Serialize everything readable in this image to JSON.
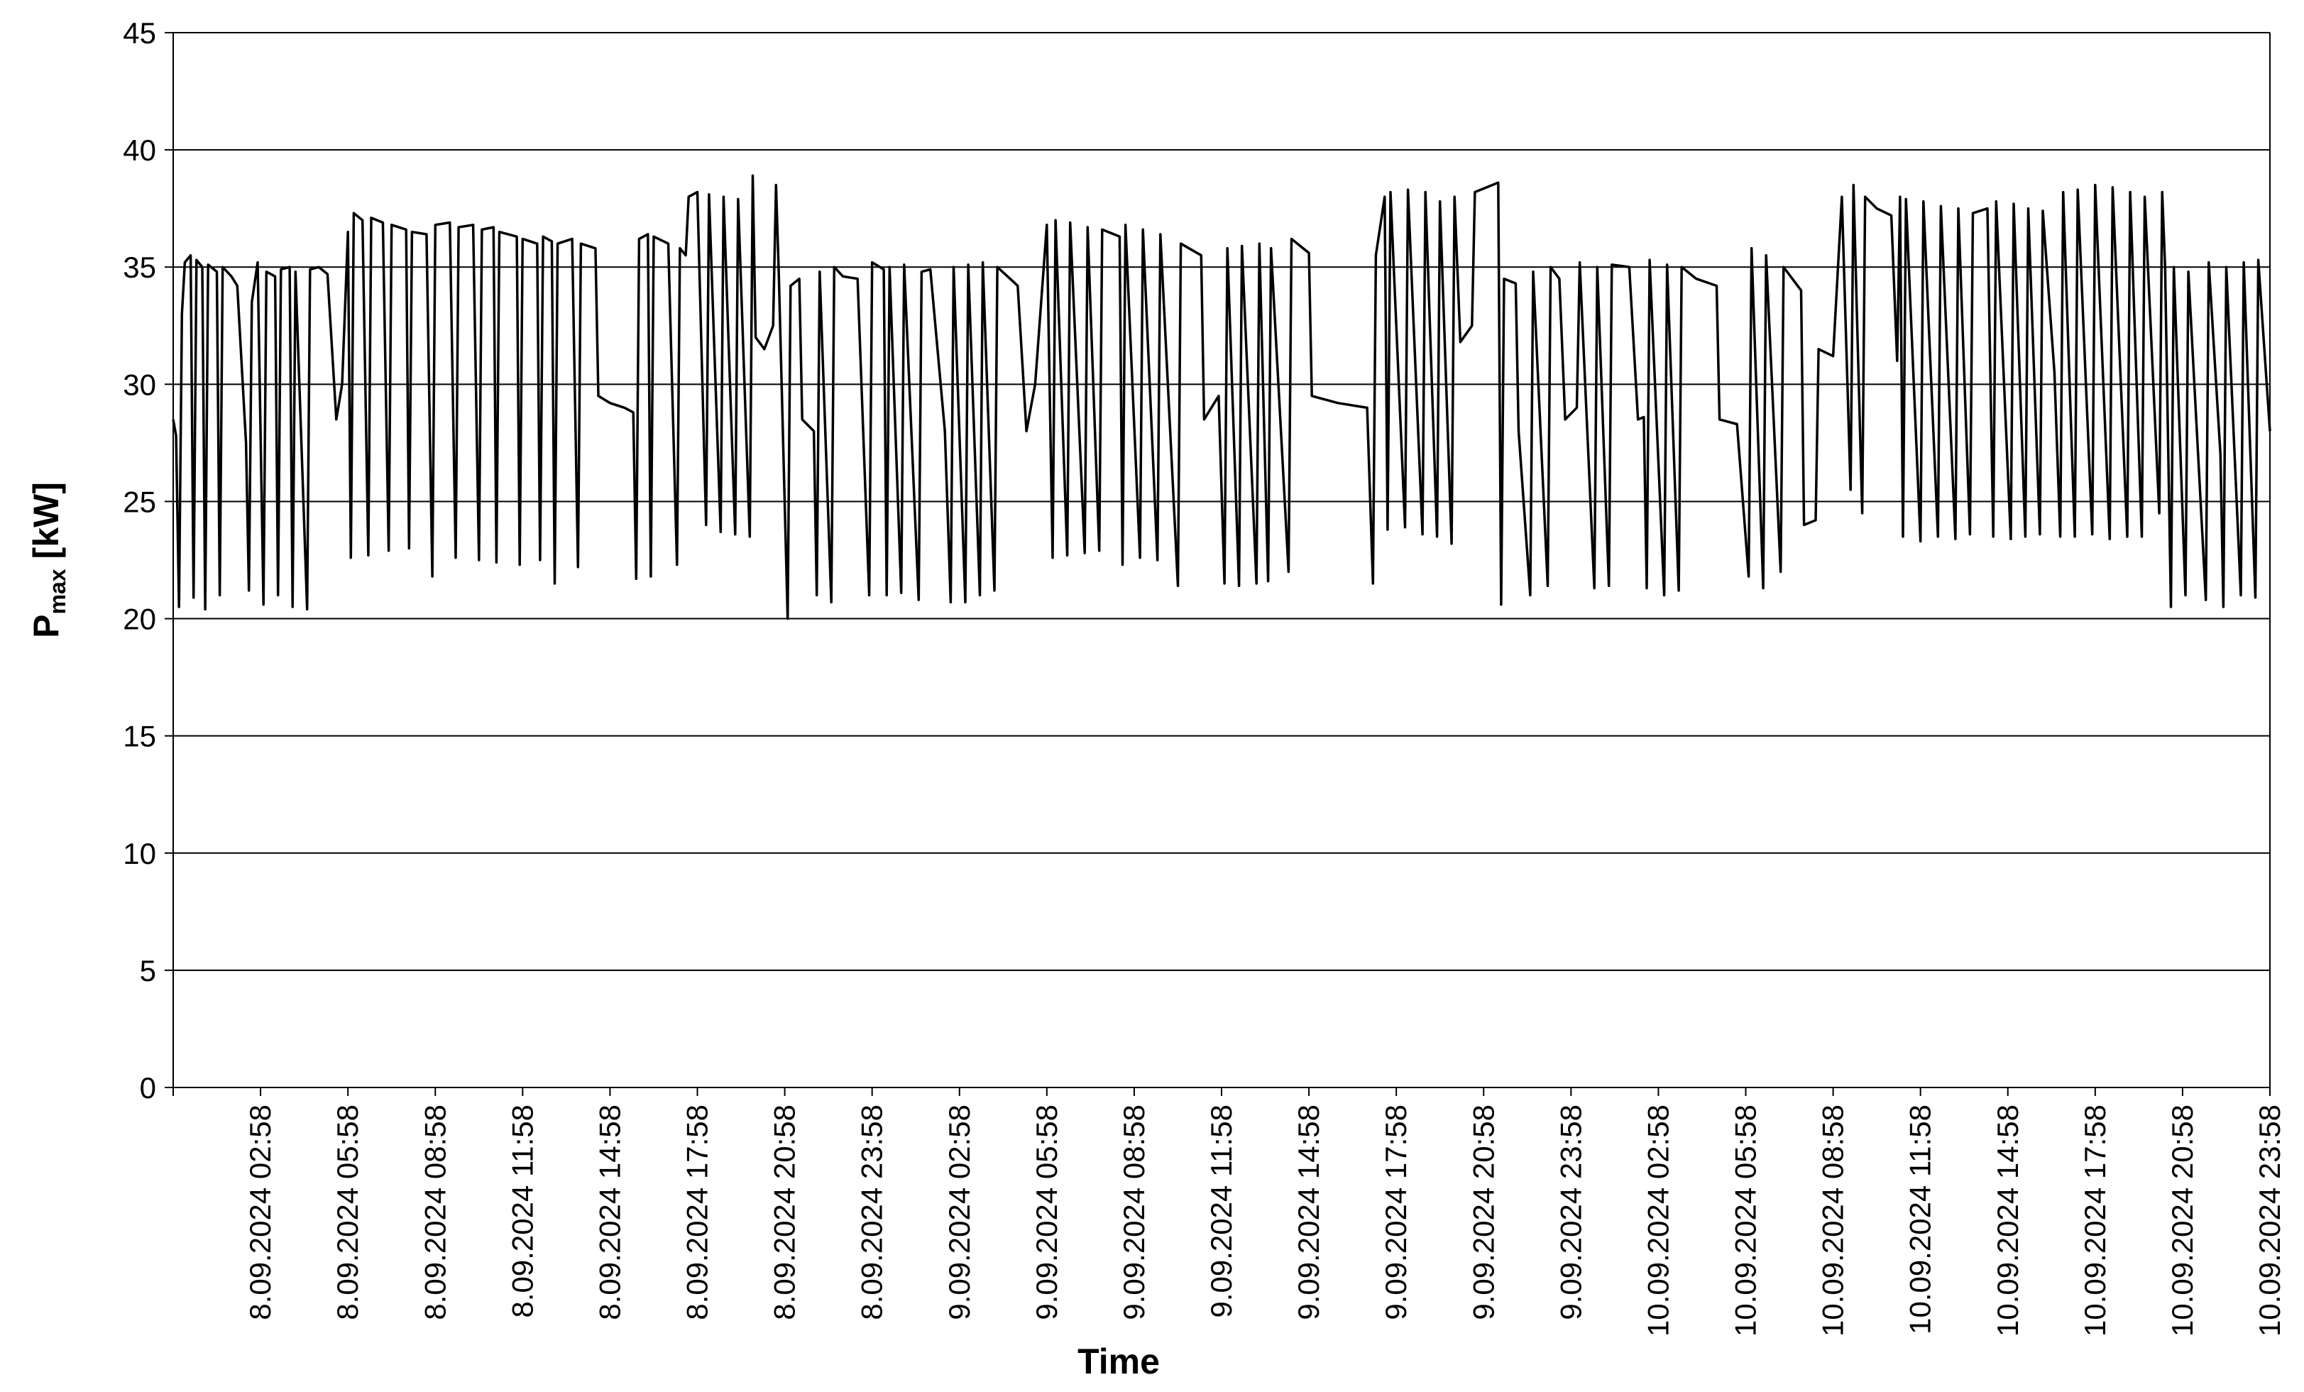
{
  "chart_data": {
    "type": "line",
    "x_label": "Time",
    "y_label": {
      "main": "P",
      "sub": "max",
      "unit": "[kW]"
    },
    "color": "#000000",
    "grid": true,
    "xlim": [
      0,
      72
    ],
    "ylim": [
      0,
      45
    ],
    "yticks": [
      0,
      5,
      10,
      15,
      20,
      25,
      30,
      35,
      40,
      45
    ],
    "xticks": [
      {
        "value": 3,
        "label": "8.09.2024 02:58"
      },
      {
        "value": 6,
        "label": "8.09.2024 05:58"
      },
      {
        "value": 9,
        "label": "8.09.2024 08:58"
      },
      {
        "value": 12,
        "label": "8.09.2024 11:58"
      },
      {
        "value": 15,
        "label": "8.09.2024 14:58"
      },
      {
        "value": 18,
        "label": "8.09.2024 17:58"
      },
      {
        "value": 21,
        "label": "8.09.2024 20:58"
      },
      {
        "value": 24,
        "label": "8.09.2024 23:58"
      },
      {
        "value": 27,
        "label": "9.09.2024 02:58"
      },
      {
        "value": 30,
        "label": "9.09.2024 05:58"
      },
      {
        "value": 33,
        "label": "9.09.2024 08:58"
      },
      {
        "value": 36,
        "label": "9.09.2024 11:58"
      },
      {
        "value": 39,
        "label": "9.09.2024 14:58"
      },
      {
        "value": 42,
        "label": "9.09.2024 17:58"
      },
      {
        "value": 45,
        "label": "9.09.2024 20:58"
      },
      {
        "value": 48,
        "label": "9.09.2024 23:58"
      },
      {
        "value": 51,
        "label": "10.09.2024 02:58"
      },
      {
        "value": 54,
        "label": "10.09.2024 05:58"
      },
      {
        "value": 57,
        "label": "10.09.2024 08:58"
      },
      {
        "value": 60,
        "label": "10.09.2024 11:58"
      },
      {
        "value": 63,
        "label": "10.09.2024 14:58"
      },
      {
        "value": 66,
        "label": "10.09.2024 17:58"
      },
      {
        "value": 69,
        "label": "10.09.2024 20:58"
      },
      {
        "value": 72,
        "label": "10.09.2024 23:58"
      }
    ],
    "x": [
      0,
      0.1,
      0.2,
      0.3,
      0.4,
      0.6,
      0.7,
      0.8,
      1.0,
      1.1,
      1.2,
      1.5,
      1.6,
      1.7,
      2.0,
      2.2,
      2.5,
      2.6,
      2.7,
      2.9,
      3.1,
      3.2,
      3.5,
      3.6,
      3.7,
      4.0,
      4.1,
      4.2,
      4.6,
      4.7,
      5.0,
      5.3,
      5.6,
      5.8,
      6.0,
      6.1,
      6.2,
      6.5,
      6.7,
      6.8,
      7.2,
      7.4,
      7.5,
      8.0,
      8.1,
      8.2,
      8.7,
      8.9,
      9.0,
      9.5,
      9.7,
      9.8,
      10.3,
      10.5,
      10.6,
      11.0,
      11.1,
      11.2,
      11.8,
      11.9,
      12.0,
      12.5,
      12.6,
      12.7,
      13.0,
      13.1,
      13.2,
      13.7,
      13.9,
      14.0,
      14.5,
      14.6,
      15.0,
      15.5,
      15.8,
      15.9,
      16.0,
      16.3,
      16.4,
      16.5,
      17.0,
      17.3,
      17.4,
      17.6,
      17.7,
      18.0,
      18.3,
      18.4,
      18.8,
      18.9,
      19.3,
      19.4,
      19.8,
      19.9,
      20.0,
      20.3,
      20.6,
      20.7,
      20.8,
      21.1,
      21.2,
      21.5,
      21.6,
      22.0,
      22.1,
      22.2,
      22.6,
      22.7,
      23.0,
      23.5,
      23.9,
      24.0,
      24.4,
      24.5,
      24.6,
      25.0,
      25.1,
      25.6,
      25.7,
      26.0,
      26.5,
      26.7,
      26.8,
      27.2,
      27.3,
      27.7,
      27.8,
      28.2,
      28.3,
      29.0,
      29.3,
      29.6,
      30.0,
      30.2,
      30.3,
      30.7,
      30.8,
      31.3,
      31.4,
      31.8,
      31.9,
      32.5,
      32.6,
      32.7,
      33.2,
      33.3,
      33.8,
      33.9,
      34.5,
      34.6,
      35.3,
      35.4,
      35.9,
      36.1,
      36.2,
      36.6,
      36.7,
      37.2,
      37.3,
      37.6,
      37.7,
      38.3,
      38.4,
      39.0,
      39.1,
      40.0,
      41.0,
      41.2,
      41.3,
      41.6,
      41.7,
      41.8,
      42.3,
      42.4,
      42.9,
      43.0,
      43.4,
      43.5,
      43.9,
      44.0,
      44.2,
      44.6,
      44.7,
      45.5,
      45.6,
      45.7,
      46.1,
      46.2,
      46.6,
      46.7,
      47.2,
      47.3,
      47.6,
      47.8,
      48.2,
      48.3,
      48.8,
      48.9,
      49.3,
      49.4,
      50.0,
      50.3,
      50.5,
      50.6,
      50.7,
      51.2,
      51.3,
      51.7,
      51.8,
      52.3,
      53.0,
      53.1,
      53.7,
      54.1,
      54.2,
      54.6,
      54.7,
      55.2,
      55.3,
      55.9,
      56.0,
      56.4,
      56.5,
      57.0,
      57.3,
      57.6,
      57.7,
      58.0,
      58.1,
      58.5,
      59.0,
      59.2,
      59.3,
      59.4,
      59.5,
      60.0,
      60.1,
      60.6,
      60.7,
      61.2,
      61.3,
      61.7,
      61.8,
      62.3,
      62.5,
      62.6,
      63.1,
      63.2,
      63.6,
      63.7,
      64.1,
      64.2,
      64.6,
      64.8,
      64.9,
      65.3,
      65.4,
      65.9,
      66.0,
      66.5,
      66.6,
      67.1,
      67.2,
      67.6,
      67.7,
      68.2,
      68.3,
      68.4,
      68.6,
      68.7,
      69.1,
      69.2,
      69.8,
      69.9,
      70.3,
      70.4,
      70.5,
      71.0,
      71.1,
      71.5,
      71.6,
      72.0
    ],
    "values": [
      28.5,
      27.8,
      20.5,
      33,
      35.2,
      35.5,
      20.9,
      35.3,
      35.0,
      20.4,
      35.1,
      34.8,
      21.0,
      35.0,
      34.6,
      34.2,
      27.5,
      21.2,
      33.5,
      35.2,
      20.6,
      34.8,
      34.6,
      21.0,
      34.9,
      35.0,
      20.5,
      34.8,
      20.4,
      34.9,
      35.0,
      34.7,
      28.5,
      30.0,
      36.5,
      22.6,
      37.3,
      37.0,
      22.7,
      37.1,
      36.9,
      22.9,
      36.8,
      36.6,
      23.0,
      36.5,
      36.4,
      21.8,
      36.8,
      36.9,
      22.6,
      36.7,
      36.8,
      22.5,
      36.6,
      36.7,
      22.4,
      36.5,
      36.3,
      22.3,
      36.2,
      36.0,
      22.5,
      36.3,
      36.1,
      21.5,
      36.0,
      36.2,
      22.2,
      36.0,
      35.8,
      29.5,
      29.2,
      29.0,
      28.8,
      21.7,
      36.2,
      36.4,
      21.8,
      36.3,
      36.0,
      22.3,
      35.8,
      35.5,
      38.0,
      38.2,
      24.0,
      38.1,
      23.7,
      38.0,
      23.6,
      37.9,
      23.5,
      38.9,
      32.0,
      31.5,
      32.5,
      38.5,
      34.5,
      20.0,
      34.2,
      34.5,
      28.5,
      28.0,
      21.0,
      34.8,
      20.7,
      35.0,
      34.6,
      34.5,
      21.0,
      35.2,
      34.9,
      21.0,
      35.0,
      21.1,
      35.1,
      20.8,
      34.8,
      34.9,
      28.0,
      20.7,
      35.0,
      20.7,
      35.1,
      21.0,
      35.2,
      21.2,
      35.0,
      34.2,
      28.0,
      30.0,
      36.8,
      22.6,
      37.0,
      22.7,
      36.9,
      22.8,
      36.7,
      22.9,
      36.6,
      36.3,
      22.3,
      36.8,
      22.6,
      36.6,
      22.5,
      36.4,
      21.4,
      36.0,
      35.5,
      28.5,
      29.5,
      21.5,
      35.8,
      21.4,
      35.9,
      21.5,
      36.0,
      21.6,
      35.8,
      22.0,
      36.2,
      35.6,
      29.5,
      29.2,
      29.0,
      21.5,
      35.5,
      38.0,
      23.8,
      38.2,
      23.9,
      38.3,
      23.6,
      38.2,
      23.5,
      37.8,
      23.2,
      38.0,
      31.8,
      32.5,
      38.2,
      38.6,
      20.6,
      34.5,
      34.3,
      28.0,
      21.0,
      34.8,
      21.4,
      35.0,
      34.5,
      28.5,
      29.0,
      35.2,
      21.3,
      35.0,
      21.4,
      35.1,
      35.0,
      28.5,
      28.6,
      21.3,
      35.3,
      21.0,
      35.1,
      21.2,
      35.0,
      34.5,
      34.2,
      28.5,
      28.3,
      21.8,
      35.8,
      21.3,
      35.5,
      22.0,
      35.0,
      34.0,
      24.0,
      24.2,
      31.5,
      31.2,
      38.0,
      25.5,
      38.5,
      24.5,
      38.0,
      37.5,
      37.2,
      31.0,
      38.0,
      23.5,
      37.9,
      23.3,
      37.8,
      23.5,
      37.6,
      23.4,
      37.5,
      23.6,
      37.3,
      37.5,
      23.5,
      37.8,
      23.4,
      37.7,
      23.5,
      37.5,
      23.6,
      37.4,
      30.5,
      23.5,
      38.2,
      23.5,
      38.3,
      23.6,
      38.5,
      23.4,
      38.4,
      23.5,
      38.2,
      23.5,
      38.0,
      24.5,
      38.2,
      35.0,
      20.5,
      35.0,
      21.0,
      34.8,
      20.8,
      35.2,
      27.0,
      20.5,
      35.0,
      21.0,
      35.2,
      20.9,
      35.3,
      28.0
    ]
  }
}
